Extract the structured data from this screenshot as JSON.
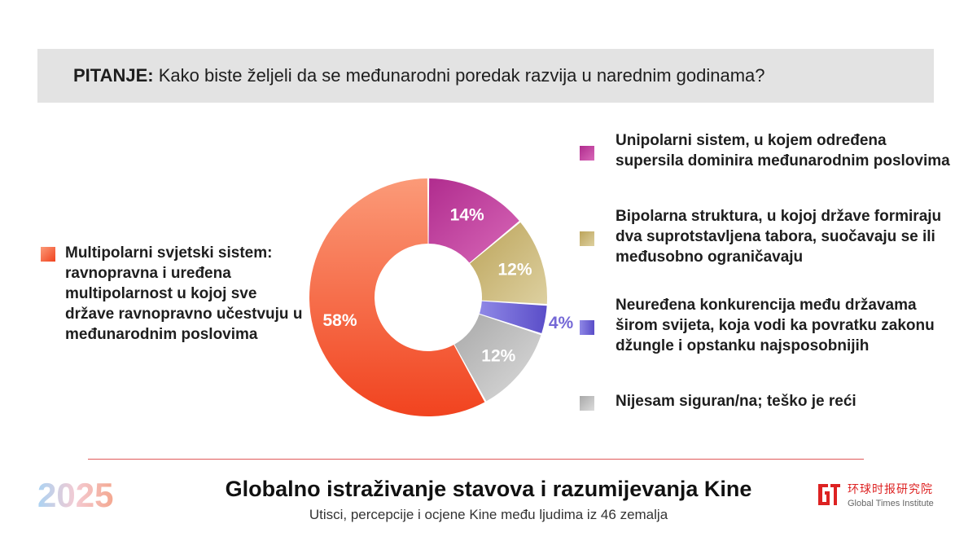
{
  "question": {
    "label": "PITANJE:",
    "text": "Kako biste željeli da se međunarodni poredak razvija u narednim godinama?"
  },
  "chart_data": {
    "type": "pie",
    "variant": "donut",
    "slices": [
      {
        "label": "Unipolarni sistem, u kojem određena supersila dominira međunarodnim poslovima",
        "value": 14,
        "display": "14%",
        "color": "#c63a9e"
      },
      {
        "label": "Bipolarna struktura, u kojoj države formiraju dva suprotstavljena tabora, suočavaju se ili međusobno ograničavaju",
        "value": 12,
        "display": "12%",
        "color": "#c7b46e"
      },
      {
        "label": "Neuređena konkurencija među državama širom svijeta, koja vodi ka povratku zakonu džungle i opstanku najsposobnijih",
        "value": 4,
        "display": "4%",
        "color": "#7468d6"
      },
      {
        "label": "Nijesam siguran/na; teško je reći",
        "value": 12,
        "display": "12%",
        "color": "#bdbdbd"
      },
      {
        "label": "Multipolarni svjetski sistem: ravnopravna i uređena multipolarnost u kojoj sve države ravnopravno učestvuju u međunarodnim poslovima",
        "value": 58,
        "display": "58%",
        "color": "#f4683a"
      }
    ]
  },
  "footer": {
    "year": "2025",
    "title": "Globalno istraživanje stavova i razumijevanja Kine",
    "subtitle": "Utisci, percepcije i ocjene Kine među ljudima iz 46 zemalja",
    "institute_cn": "环球时报研究院",
    "institute_en": "Global Times Institute"
  },
  "colors": {
    "question_bg": "#e3e3e3",
    "divider": "#e05a5a",
    "brand_red": "#dd2222"
  }
}
